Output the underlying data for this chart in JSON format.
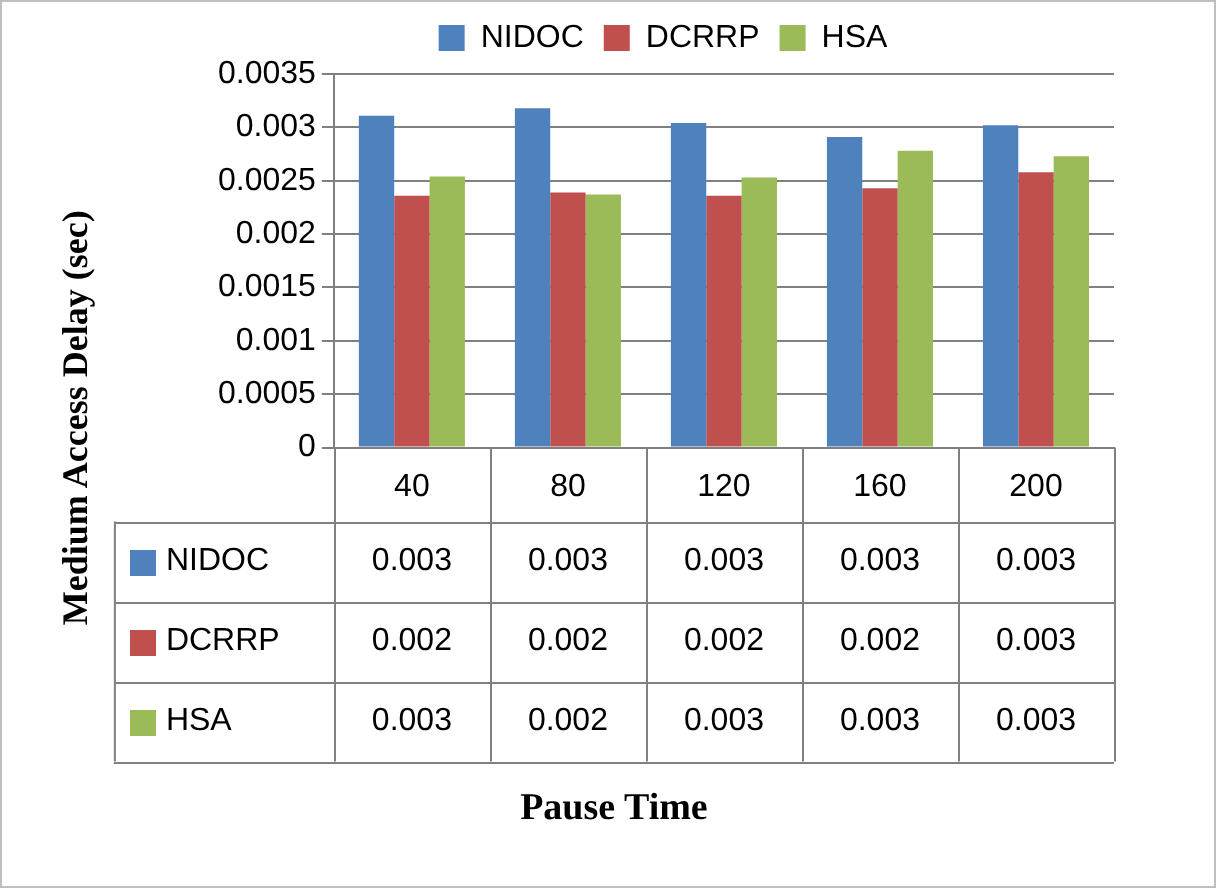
{
  "chart_data": {
    "type": "bar",
    "annotations": [
      "Pause Time"
    ],
    "ylabel": "Medium Access Delay (sec)",
    "categories": [
      "40",
      "80",
      "120",
      "160",
      "200"
    ],
    "series": [
      {
        "name": "NIDOC",
        "color": "#4f81bd",
        "values": [
          0.00311,
          0.00318,
          0.00304,
          0.00291,
          0.00302
        ],
        "value_labels": [
          "0.003",
          "0.003",
          "0.003",
          "0.003",
          "0.003"
        ]
      },
      {
        "name": "DCRRP",
        "color": "#c0504d",
        "values": [
          0.00236,
          0.00239,
          0.00236,
          0.00243,
          0.00258
        ],
        "value_labels": [
          "0.002",
          "0.002",
          "0.002",
          "0.002",
          "0.003"
        ]
      },
      {
        "name": "HSA",
        "color": "#9bbb59",
        "values": [
          0.00254,
          0.00237,
          0.00253,
          0.00278,
          0.00273
        ],
        "value_labels": [
          "0.003",
          "0.002",
          "0.003",
          "0.003",
          "0.003"
        ]
      }
    ],
    "ylim": [
      0,
      0.0035
    ],
    "yticks": [
      0,
      0.0005,
      0.001,
      0.0015,
      0.002,
      0.0025,
      0.003,
      0.0035
    ],
    "grid": "y",
    "legend": "top"
  }
}
